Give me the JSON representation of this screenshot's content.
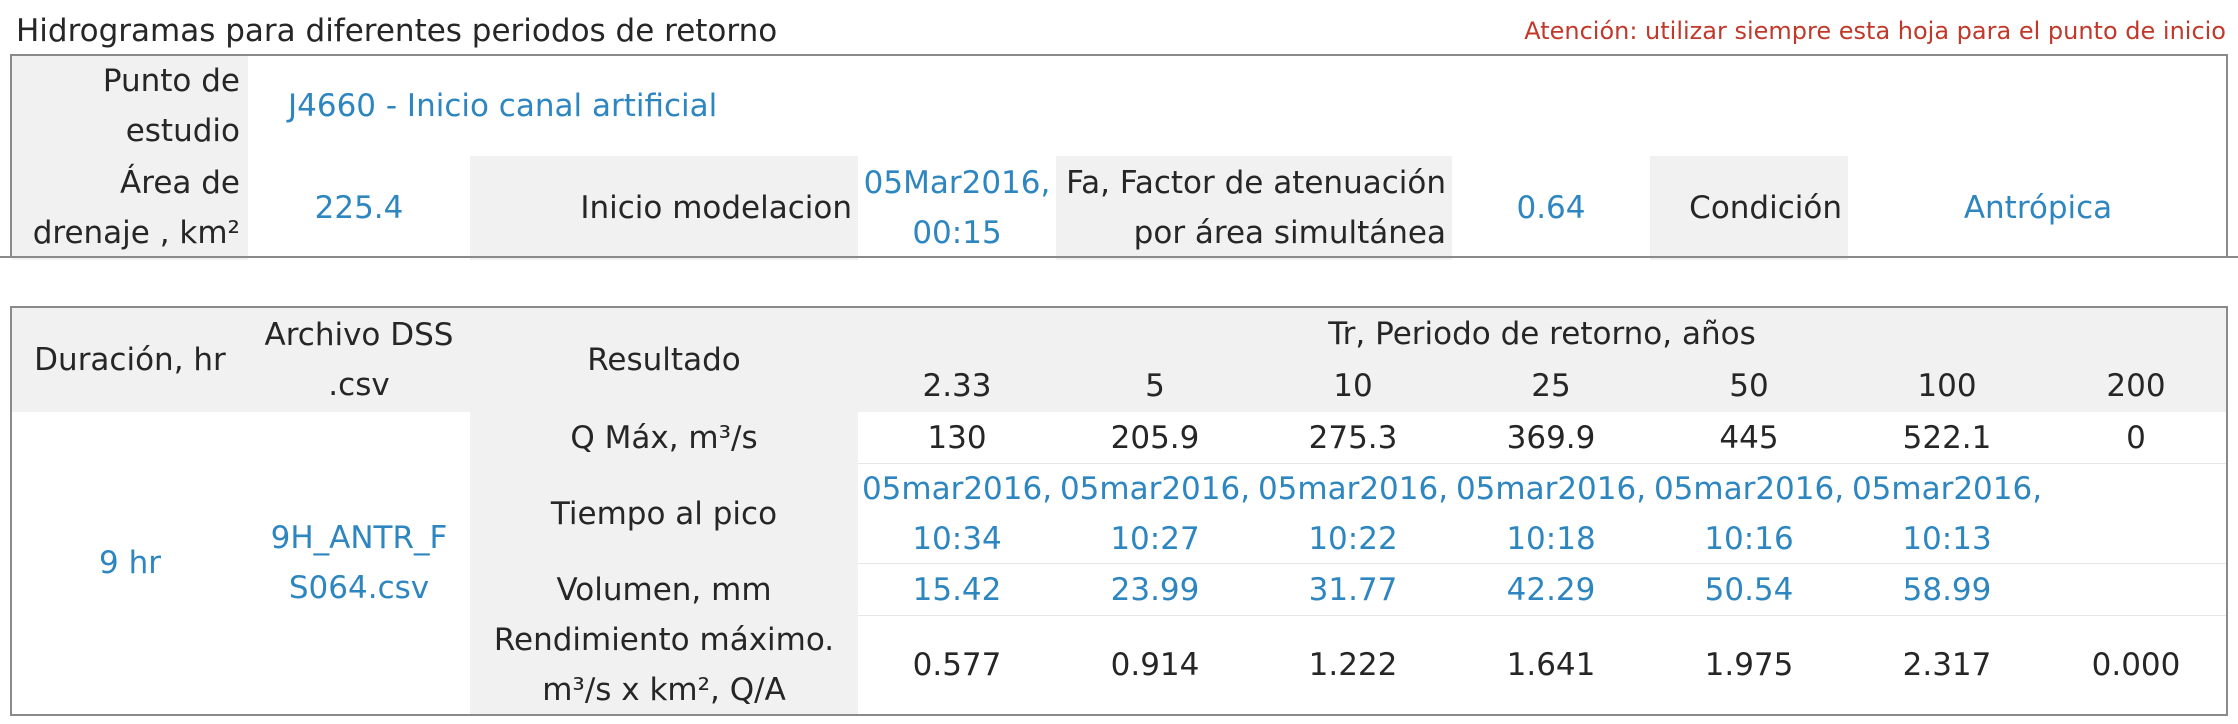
{
  "header": {
    "title": "Hidrogramas para diferentes periodos de retorno",
    "warning": "Atención: utilizar siempre esta hoja para el punto de inicio"
  },
  "info": {
    "punto_label": "Punto de estudio",
    "punto_value": "J4660 - Inicio canal artificial",
    "area_label": "Área de drenaje , km²",
    "area_value": "225.4",
    "inicio_label": "Inicio modelacion",
    "inicio_value": "05Mar2016, 00:15",
    "fa_label": "Fa, Factor de atenuación por área simultánea",
    "fa_value": "0.64",
    "condicion_label": "Condición",
    "condicion_value": "Antrópica"
  },
  "results": {
    "col_duracion": "Duración, hr",
    "col_archivo": "Archivo DSS .csv",
    "col_resultado": "Resultado",
    "col_tr": "Tr, Periodo de retorno, años",
    "tr_values": [
      "2.33",
      "5",
      "10",
      "25",
      "50",
      "100",
      "200"
    ],
    "duracion": "9 hr",
    "archivo": "9H_ANTR_FS064.csv",
    "row_qmax_label": "Q Máx, m³/s",
    "row_qmax": [
      "130",
      "205.9",
      "275.3",
      "369.9",
      "445",
      "522.1",
      "0"
    ],
    "row_tiempo_label": "Tiempo al pico",
    "row_tiempo": [
      "05mar2016, 10:34",
      "05mar2016, 10:27",
      "05mar2016, 10:22",
      "05mar2016, 10:18",
      "05mar2016, 10:16",
      "05mar2016, 10:13",
      ""
    ],
    "row_volumen_label": "Volumen, mm",
    "row_volumen": [
      "15.42",
      "23.99",
      "31.77",
      "42.29",
      "50.54",
      "58.99",
      ""
    ],
    "row_rend_label": "Rendimiento máximo. m³/s x km², Q/A",
    "row_rend": [
      "0.577",
      "0.914",
      "1.222",
      "1.641",
      "1.975",
      "2.317",
      "0.000"
    ]
  },
  "colors": {
    "link_blue": "#2e86c1",
    "warning_red": "#c0392b",
    "header_gray": "#f1f1f1"
  }
}
